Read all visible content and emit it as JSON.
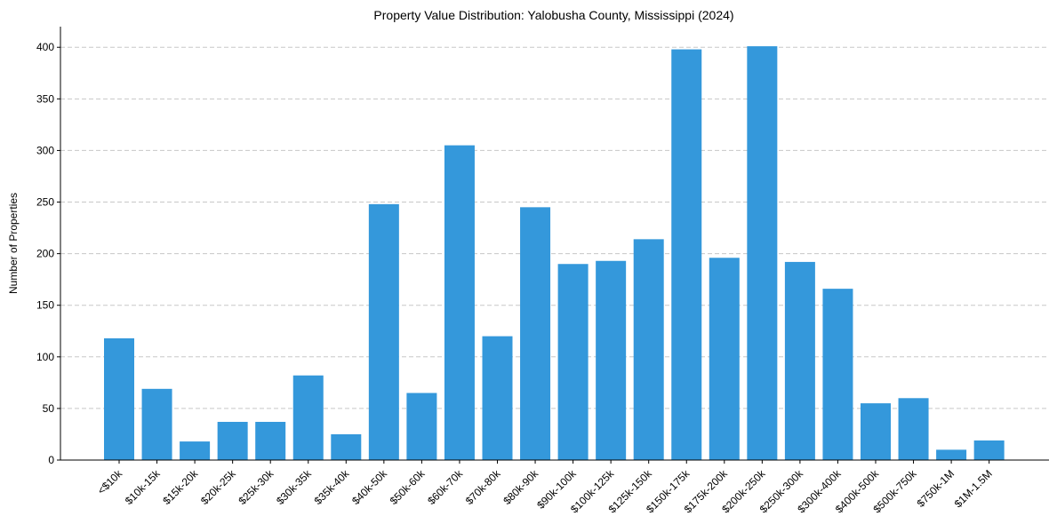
{
  "chart_data": {
    "type": "bar",
    "title": "Property Value Distribution: Yalobusha County, Mississippi (2024)",
    "xlabel": "",
    "ylabel": "Number of Properties",
    "ylim": [
      0,
      420
    ],
    "yticks": [
      0,
      50,
      100,
      150,
      200,
      250,
      300,
      350,
      400
    ],
    "grid": "y-dashed",
    "bar_color": "#3498db",
    "grid_color": "#c8c8c8",
    "categories": [
      "<$10k",
      "$10k-15k",
      "$15k-20k",
      "$20k-25k",
      "$25k-30k",
      "$30k-35k",
      "$35k-40k",
      "$40k-50k",
      "$50k-60k",
      "$60k-70k",
      "$70k-80k",
      "$80k-90k",
      "$90k-100k",
      "$100k-125k",
      "$125k-150k",
      "$150k-175k",
      "$175k-200k",
      "$200k-250k",
      "$250k-300k",
      "$300k-400k",
      "$400k-500k",
      "$500k-750k",
      "$750k-1M",
      "$1M-1.5M"
    ],
    "values": [
      118,
      69,
      18,
      37,
      37,
      82,
      25,
      248,
      65,
      305,
      120,
      245,
      190,
      193,
      214,
      398,
      196,
      401,
      192,
      166,
      55,
      60,
      10,
      19
    ]
  }
}
